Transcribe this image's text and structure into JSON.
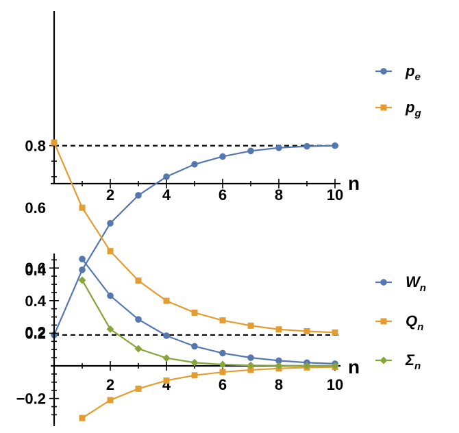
{
  "chart_data": [
    {
      "type": "line",
      "xlabel": "n",
      "ylabel": "",
      "xlim": [
        0,
        10
      ],
      "ylim": [
        0.0,
        0.82
      ],
      "x_ticks": [
        2,
        4,
        6,
        8,
        10
      ],
      "y_ticks": [
        0.2,
        0.4,
        0.6,
        0.8
      ],
      "x_tick_labels": [
        "2",
        "4",
        "6",
        "8",
        "10"
      ],
      "y_tick_labels": [
        "0.2",
        "0.4",
        "0.6",
        "0.8"
      ],
      "grid": false,
      "legend_position": "right",
      "reference_lines": [
        {
          "y": 0.8,
          "style": "dashed"
        },
        {
          "y": 0.19,
          "style": "dashed"
        }
      ],
      "x": [
        0,
        1,
        2,
        3,
        4,
        5,
        6,
        7,
        8,
        9,
        10
      ],
      "series": [
        {
          "base": "p",
          "sub": "e",
          "marker": "circle",
          "color": "#5477b0",
          "values": [
            0.19,
            0.4,
            0.55,
            0.64,
            0.7,
            0.74,
            0.765,
            0.783,
            0.793,
            0.798,
            0.8
          ]
        },
        {
          "base": "p",
          "sub": "g",
          "marker": "square",
          "color": "#e29c2f",
          "values": [
            0.81,
            0.6,
            0.46,
            0.365,
            0.3,
            0.262,
            0.237,
            0.22,
            0.208,
            0.202,
            0.198
          ]
        }
      ]
    },
    {
      "type": "line",
      "xlabel": "n",
      "ylabel": "",
      "xlim": [
        0,
        10
      ],
      "ylim": [
        -0.33,
        0.67
      ],
      "x_ticks": [
        2,
        4,
        6,
        8,
        10
      ],
      "y_ticks": [
        -0.2,
        0.2,
        0.4,
        0.6
      ],
      "x_tick_labels": [
        "2",
        "4",
        "6",
        "8",
        "10"
      ],
      "y_tick_labels": [
        "−0.2",
        "0.2",
        "0.4",
        "0.6"
      ],
      "grid": false,
      "legend_position": "right",
      "x": [
        1,
        2,
        3,
        4,
        5,
        6,
        7,
        8,
        9,
        10
      ],
      "series": [
        {
          "base": "W",
          "sub": "n",
          "marker": "circle",
          "color": "#5477b0",
          "values": [
            0.655,
            0.43,
            0.285,
            0.185,
            0.12,
            0.078,
            0.05,
            0.032,
            0.02,
            0.013
          ]
        },
        {
          "base": "Q",
          "sub": "n",
          "marker": "square",
          "color": "#e29c2f",
          "values": [
            -0.32,
            -0.21,
            -0.14,
            -0.09,
            -0.058,
            -0.038,
            -0.025,
            -0.016,
            -0.01,
            -0.007
          ]
        },
        {
          "base": "Σ",
          "sub": "n",
          "marker": "diamond",
          "color": "#87a53a",
          "values": [
            0.525,
            0.225,
            0.105,
            0.048,
            0.02,
            0.008,
            0.003,
            0.001,
            0.0005,
            0.0002
          ]
        }
      ]
    }
  ]
}
